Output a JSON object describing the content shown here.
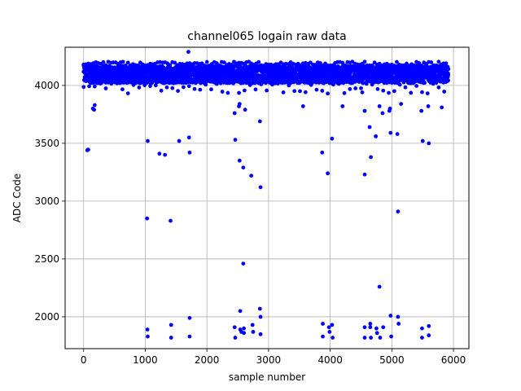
{
  "chart_data": {
    "type": "scatter",
    "title": "channel065 logain raw data",
    "xlabel": "sample number",
    "ylabel": "ADC Code",
    "xlim": [
      -300,
      6250
    ],
    "ylim": [
      1725,
      4330
    ],
    "xticks": [
      0,
      1000,
      2000,
      3000,
      4000,
      5000,
      6000
    ],
    "yticks": [
      2000,
      2500,
      3000,
      3500,
      4000
    ],
    "grid": true,
    "marker_color": "#0000ff",
    "sample_count": 5920,
    "main_band": {
      "low": 4020,
      "high": 4170,
      "upper_noise": 4205,
      "lower_noise": 3930
    },
    "outliers": [
      [
        60,
        3440
      ],
      [
        75,
        3445
      ],
      [
        150,
        3800
      ],
      [
        170,
        3790
      ],
      [
        180,
        3830
      ],
      [
        1030,
        2850
      ],
      [
        1040,
        3520
      ],
      [
        1035,
        1890
      ],
      [
        1040,
        1830
      ],
      [
        1230,
        3410
      ],
      [
        1320,
        3400
      ],
      [
        1410,
        2830
      ],
      [
        1420,
        1930
      ],
      [
        1420,
        1820
      ],
      [
        1550,
        3520
      ],
      [
        1710,
        3550
      ],
      [
        1720,
        3420
      ],
      [
        1720,
        1990
      ],
      [
        1720,
        1830
      ],
      [
        1700,
        4290
      ],
      [
        2450,
        3760
      ],
      [
        2460,
        3530
      ],
      [
        2450,
        1910
      ],
      [
        2460,
        1820
      ],
      [
        2520,
        3820
      ],
      [
        2530,
        3840
      ],
      [
        2530,
        3350
      ],
      [
        2540,
        2050
      ],
      [
        2540,
        1890
      ],
      [
        2560,
        1870
      ],
      [
        2590,
        3290
      ],
      [
        2590,
        2460
      ],
      [
        2600,
        1900
      ],
      [
        2600,
        1860
      ],
      [
        2620,
        3790
      ],
      [
        2720,
        3220
      ],
      [
        2740,
        1930
      ],
      [
        2750,
        1870
      ],
      [
        2860,
        3690
      ],
      [
        2870,
        3120
      ],
      [
        2860,
        2070
      ],
      [
        2870,
        2000
      ],
      [
        2870,
        1850
      ],
      [
        3560,
        3820
      ],
      [
        3870,
        3420
      ],
      [
        3880,
        1940
      ],
      [
        3880,
        1830
      ],
      [
        3960,
        3240
      ],
      [
        3980,
        1910
      ],
      [
        3990,
        1870
      ],
      [
        4030,
        3540
      ],
      [
        4030,
        1930
      ],
      [
        4040,
        1820
      ],
      [
        4200,
        3820
      ],
      [
        4520,
        3940
      ],
      [
        4560,
        3780
      ],
      [
        4560,
        3230
      ],
      [
        4560,
        1910
      ],
      [
        4560,
        1820
      ],
      [
        4640,
        3640
      ],
      [
        4660,
        3380
      ],
      [
        4650,
        1940
      ],
      [
        4650,
        1910
      ],
      [
        4660,
        1820
      ],
      [
        4740,
        3560
      ],
      [
        4750,
        1900
      ],
      [
        4760,
        1860
      ],
      [
        4800,
        3820
      ],
      [
        4800,
        2260
      ],
      [
        4810,
        1820
      ],
      [
        4850,
        3760
      ],
      [
        4860,
        1910
      ],
      [
        4960,
        3780
      ],
      [
        4980,
        3590
      ],
      [
        4970,
        3800
      ],
      [
        4980,
        2010
      ],
      [
        4990,
        1830
      ],
      [
        5090,
        3580
      ],
      [
        5100,
        2910
      ],
      [
        5100,
        2000
      ],
      [
        5110,
        1940
      ],
      [
        5150,
        3840
      ],
      [
        5480,
        3780
      ],
      [
        5500,
        3520
      ],
      [
        5490,
        1900
      ],
      [
        5490,
        1820
      ],
      [
        5590,
        3820
      ],
      [
        5600,
        3500
      ],
      [
        5600,
        1920
      ],
      [
        5600,
        1840
      ],
      [
        5810,
        3810
      ]
    ]
  }
}
